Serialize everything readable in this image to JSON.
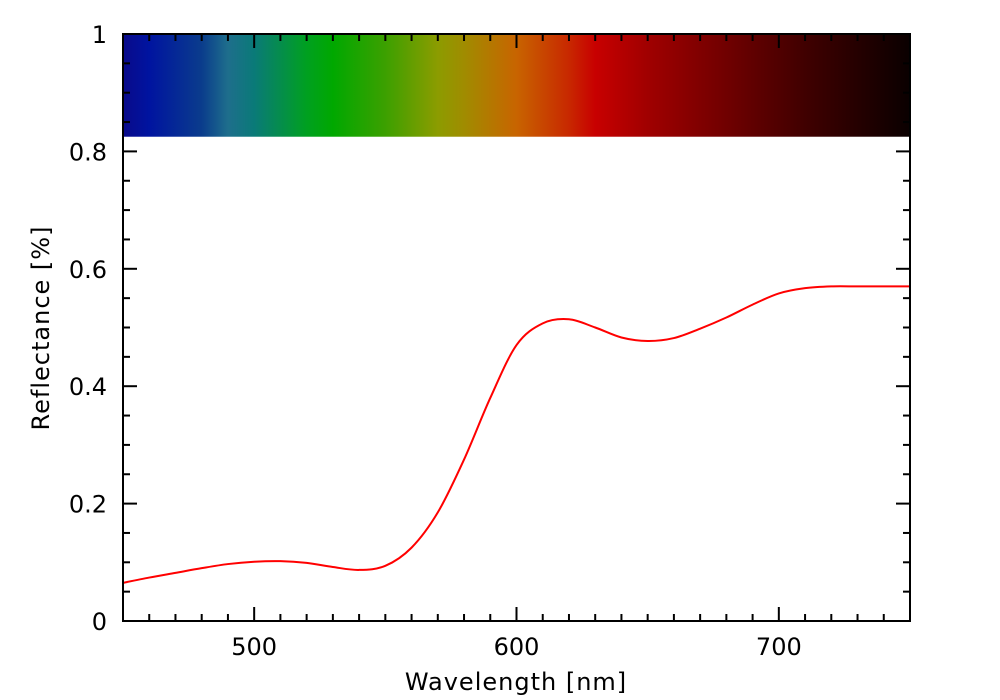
{
  "chart_data": {
    "type": "line",
    "title": "",
    "xlabel": "Wavelength [nm]",
    "ylabel": "Reflectance [%]",
    "xlim": [
      450,
      750
    ],
    "ylim": [
      0,
      1
    ],
    "x_ticks": [
      500,
      600,
      700
    ],
    "x_tick_labels": [
      "500",
      "600",
      "700"
    ],
    "y_ticks": [
      0,
      0.2,
      0.4,
      0.6,
      0.8,
      1
    ],
    "y_tick_labels": [
      "0",
      "0.2",
      "0.4",
      "0.6",
      "0.8",
      "1"
    ],
    "x_minor_step": 10,
    "y_minor_step": 0.05,
    "grid": false,
    "legend": "none",
    "line_color": "#ff0000",
    "spectrum_band": {
      "y_range": [
        0.825,
        1
      ],
      "gradient_stops": [
        {
          "x": 450,
          "color": "#0a0a8a"
        },
        {
          "x": 460,
          "color": "#0014a0"
        },
        {
          "x": 480,
          "color": "#0a3c8c"
        },
        {
          "x": 490,
          "color": "#1e6e8c"
        },
        {
          "x": 500,
          "color": "#0a7a78"
        },
        {
          "x": 520,
          "color": "#00a020"
        },
        {
          "x": 530,
          "color": "#00a800"
        },
        {
          "x": 550,
          "color": "#3ca000"
        },
        {
          "x": 570,
          "color": "#8c9c00"
        },
        {
          "x": 580,
          "color": "#a08c00"
        },
        {
          "x": 600,
          "color": "#c86400"
        },
        {
          "x": 620,
          "color": "#c82800"
        },
        {
          "x": 630,
          "color": "#c80000"
        },
        {
          "x": 650,
          "color": "#a00000"
        },
        {
          "x": 680,
          "color": "#700000"
        },
        {
          "x": 710,
          "color": "#400000"
        },
        {
          "x": 750,
          "color": "#0a0000"
        }
      ]
    },
    "series": [
      {
        "x": [
          450,
          460,
          470,
          480,
          490,
          500,
          510,
          520,
          530,
          540,
          550,
          560,
          570,
          580,
          590,
          600,
          610,
          620,
          630,
          640,
          650,
          660,
          670,
          680,
          690,
          700,
          710,
          720,
          730,
          740,
          750
        ],
        "y": [
          0.065,
          0.074,
          0.082,
          0.09,
          0.097,
          0.101,
          0.102,
          0.099,
          0.092,
          0.087,
          0.094,
          0.125,
          0.185,
          0.275,
          0.38,
          0.47,
          0.507,
          0.514,
          0.5,
          0.483,
          0.477,
          0.482,
          0.498,
          0.517,
          0.539,
          0.558,
          0.567,
          0.57,
          0.57,
          0.57,
          0.57
        ]
      }
    ]
  }
}
